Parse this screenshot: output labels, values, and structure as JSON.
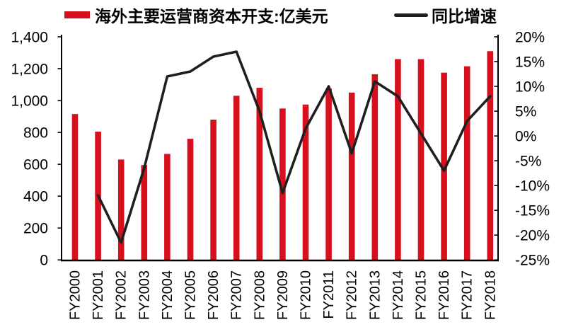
{
  "chart_data": {
    "type": "bar+line",
    "title": "",
    "categories": [
      "FY2000",
      "FY2001",
      "FY2002",
      "FY2003",
      "FY2004",
      "FY2005",
      "FY2006",
      "FY2007",
      "FY2008",
      "FY2009",
      "FY2010",
      "FY2011",
      "FY2012",
      "FY2013",
      "FY2014",
      "FY2015",
      "FY2016",
      "FY2017",
      "FY2018"
    ],
    "series": [
      {
        "name": "海外主要运营商资本开支:亿美元",
        "type": "bar",
        "axis": "left",
        "color": "#D7101E",
        "values": [
          915,
          805,
          630,
          595,
          665,
          760,
          880,
          1030,
          1080,
          950,
          975,
          1075,
          1050,
          1165,
          1260,
          1260,
          1175,
          1215,
          1310
        ]
      },
      {
        "name": "同比增速",
        "type": "line",
        "axis": "right",
        "color": "#1F1F1F",
        "values": [
          null,
          -12,
          -21.5,
          -6.5,
          12,
          13,
          16,
          17,
          5,
          -11.5,
          1.5,
          10,
          -3.5,
          11,
          8,
          0.5,
          -7,
          3,
          8
        ]
      }
    ],
    "left_axis": {
      "min": 0,
      "max": 1400,
      "step": 200,
      "tick_labels": [
        "0",
        "200",
        "400",
        "600",
        "800",
        "1,000",
        "1,200",
        "1,400"
      ]
    },
    "right_axis": {
      "min": -25,
      "max": 20,
      "step": 5,
      "tick_labels": [
        "20%",
        "15%",
        "10%",
        "5%",
        "0%",
        "-5%",
        "-10%",
        "-15%",
        "-20%",
        "-25%"
      ]
    },
    "legend_position": "top",
    "grid": false,
    "background": "#FFFFFF",
    "axis_color": "#000000"
  }
}
